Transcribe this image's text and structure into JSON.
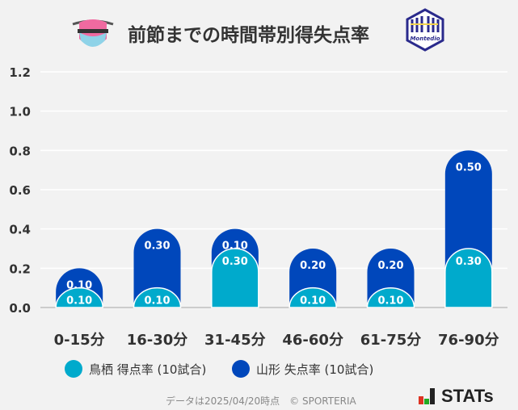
{
  "title": "前節までの時間帯別得失点率",
  "logos": {
    "home": "sagantosu",
    "away": "Montedio YAMAGATA"
  },
  "legend": [
    {
      "label": "鳥栖 得点率 (10試合)",
      "color": "#00aacc"
    },
    {
      "label": "山形 失点率 (10試合)",
      "color": "#0047bb"
    }
  ],
  "footer": "データは2025/04/20時点　© SPORTERIA",
  "brand": "STATs",
  "chart_data": {
    "type": "bar",
    "stacked": true,
    "categories": [
      "0-15分",
      "16-30分",
      "31-45分",
      "46-60分",
      "61-75分",
      "76-90分"
    ],
    "series": [
      {
        "name": "鳥栖 得点率 (10試合)",
        "color": "#00aacc",
        "values": [
          0.1,
          0.1,
          0.3,
          0.1,
          0.1,
          0.3
        ],
        "labels": [
          "0.10",
          "0.10",
          "0.30",
          "0.10",
          "0.10",
          "0.30"
        ]
      },
      {
        "name": "山形 失点率 (10試合)",
        "color": "#0047bb",
        "values": [
          0.1,
          0.3,
          0.1,
          0.2,
          0.2,
          0.5
        ],
        "labels": [
          "0.10",
          "0.30",
          "0.10",
          "0.20",
          "0.20",
          "0.50"
        ]
      }
    ],
    "ylim": [
      0,
      1.2
    ],
    "yticks": [
      "0.0",
      "0.2",
      "0.4",
      "0.6",
      "0.8",
      "1.0",
      "1.2"
    ],
    "grid": true,
    "legend_position": "bottom"
  }
}
